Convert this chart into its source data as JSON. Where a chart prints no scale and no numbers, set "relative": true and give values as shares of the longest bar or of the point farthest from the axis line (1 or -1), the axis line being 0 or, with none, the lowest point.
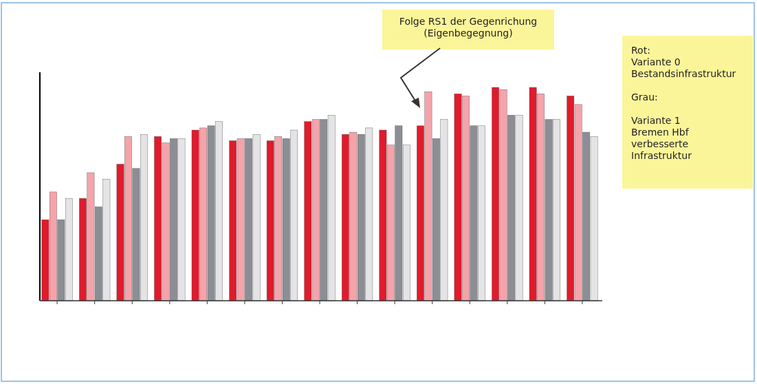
{
  "chart_data": {
    "type": "bar",
    "relative": true,
    "categories": [
      null,
      null,
      null,
      null,
      null,
      null,
      null,
      null,
      null,
      null,
      null,
      null,
      null,
      null,
      null
    ],
    "series": [
      {
        "color": "#e01b2c",
        "values": [
          0.38,
          0.48,
          0.64,
          0.77,
          0.8,
          0.75,
          0.75,
          0.84,
          0.78,
          0.8,
          0.82,
          0.97,
          1,
          1,
          0.96
        ]
      },
      {
        "color": "#f5a3ab",
        "values": [
          0.51,
          0.6,
          0.77,
          0.74,
          0.81,
          0.76,
          0.77,
          0.85,
          0.79,
          0.73,
          0.98,
          0.96,
          0.99,
          0.97,
          0.92
        ]
      },
      {
        "color": "#8b8e94",
        "values": [
          0.38,
          0.44,
          0.62,
          0.76,
          0.82,
          0.76,
          0.76,
          0.85,
          0.78,
          0.82,
          0.76,
          0.82,
          0.87,
          0.85,
          0.79
        ]
      },
      {
        "color": "#e4e4e6",
        "values": [
          0.48,
          0.57,
          0.78,
          0.76,
          0.84,
          0.78,
          0.8,
          0.87,
          0.81,
          0.73,
          0.85,
          0.82,
          0.87,
          0.85,
          0.77
        ]
      }
    ],
    "annotations": [
      "Folge RS1 der Gegenrichung\n(Eigenbegegnung)",
      "Rot:\nVariante 0\nBestandsinfrastruktur\n\nGrau:\n\nVariante 1\nBremen Hbf\nverbesserte\nInfrastruktur"
    ]
  }
}
